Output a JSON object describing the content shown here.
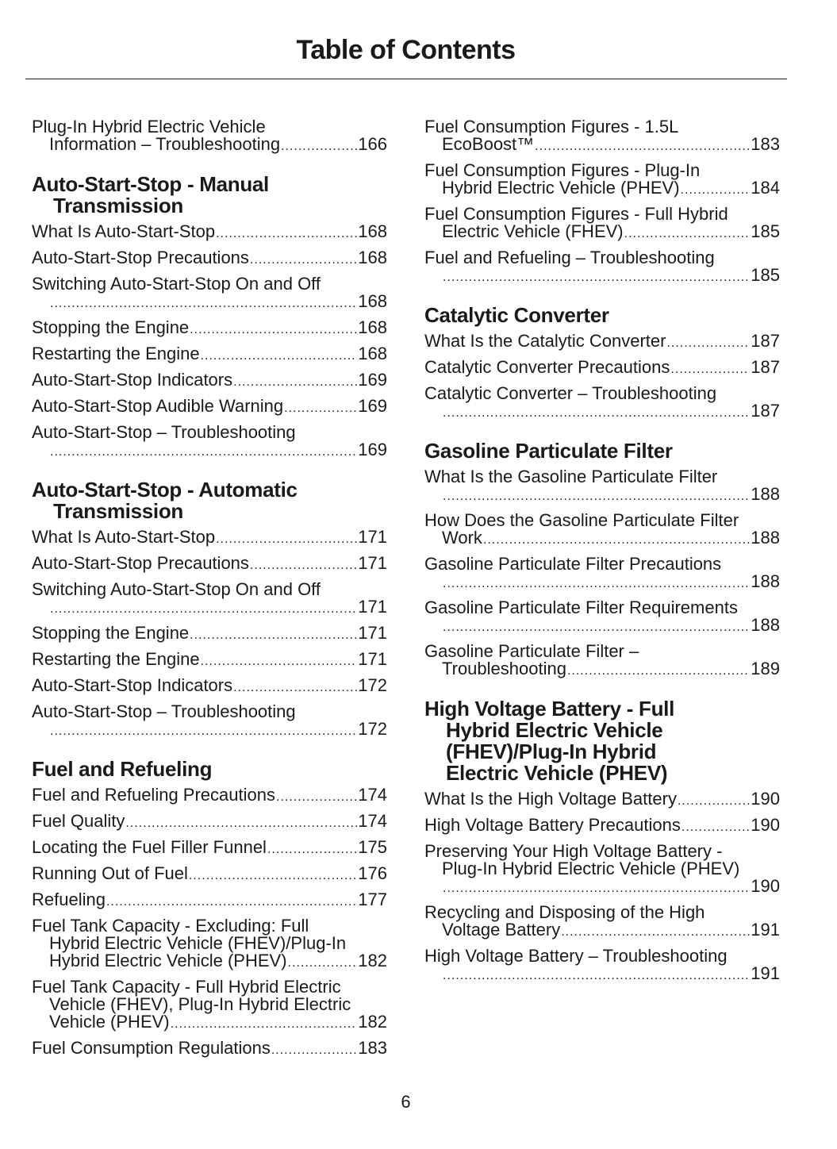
{
  "title": "Table of Contents",
  "page_number": "6",
  "columns": [
    [
      {
        "type": "entry",
        "lines": [
          "Plug-In Hybrid Electric Vehicle",
          "Information – Troubleshooting"
        ],
        "page": "166"
      },
      {
        "type": "heading",
        "lines": [
          "Auto-Start-Stop - Manual",
          "Transmission"
        ]
      },
      {
        "type": "entry",
        "lines": [
          "What Is Auto-Start-Stop"
        ],
        "page": "168"
      },
      {
        "type": "entry",
        "lines": [
          "Auto-Start-Stop Precautions"
        ],
        "page": "168"
      },
      {
        "type": "entry",
        "lines": [
          "Switching Auto-Start-Stop On and Off",
          ""
        ],
        "page": "168"
      },
      {
        "type": "entry",
        "lines": [
          "Stopping the Engine"
        ],
        "page": "168"
      },
      {
        "type": "entry",
        "lines": [
          "Restarting the Engine"
        ],
        "page": "168"
      },
      {
        "type": "entry",
        "lines": [
          "Auto-Start-Stop Indicators"
        ],
        "page": "169"
      },
      {
        "type": "entry",
        "lines": [
          "Auto-Start-Stop Audible Warning"
        ],
        "page": "169"
      },
      {
        "type": "entry",
        "lines": [
          "Auto-Start-Stop – Troubleshooting",
          ""
        ],
        "page": "169"
      },
      {
        "type": "heading",
        "lines": [
          "Auto-Start-Stop - Automatic",
          "Transmission"
        ]
      },
      {
        "type": "entry",
        "lines": [
          "What Is Auto-Start-Stop"
        ],
        "page": "171"
      },
      {
        "type": "entry",
        "lines": [
          "Auto-Start-Stop Precautions"
        ],
        "page": "171"
      },
      {
        "type": "entry",
        "lines": [
          "Switching Auto-Start-Stop On and Off",
          ""
        ],
        "page": "171"
      },
      {
        "type": "entry",
        "lines": [
          "Stopping the Engine"
        ],
        "page": "171"
      },
      {
        "type": "entry",
        "lines": [
          "Restarting the Engine"
        ],
        "page": "171"
      },
      {
        "type": "entry",
        "lines": [
          "Auto-Start-Stop Indicators"
        ],
        "page": "172"
      },
      {
        "type": "entry",
        "lines": [
          "Auto-Start-Stop – Troubleshooting",
          ""
        ],
        "page": "172"
      },
      {
        "type": "heading",
        "lines": [
          "Fuel and Refueling"
        ]
      },
      {
        "type": "entry",
        "lines": [
          "Fuel and Refueling Precautions"
        ],
        "page": "174"
      },
      {
        "type": "entry",
        "lines": [
          "Fuel Quality"
        ],
        "page": "174"
      },
      {
        "type": "entry",
        "lines": [
          "Locating the Fuel Filler Funnel"
        ],
        "page": "175"
      },
      {
        "type": "entry",
        "lines": [
          "Running Out of Fuel"
        ],
        "page": "176"
      },
      {
        "type": "entry",
        "lines": [
          "Refueling"
        ],
        "page": "177"
      },
      {
        "type": "entry",
        "lines": [
          "Fuel Tank Capacity - Excluding: Full",
          "Hybrid Electric Vehicle (FHEV)/Plug-In",
          "Hybrid Electric Vehicle (PHEV)"
        ],
        "page": "182"
      },
      {
        "type": "entry",
        "lines": [
          "Fuel Tank Capacity - Full Hybrid Electric",
          "Vehicle (FHEV), Plug-In Hybrid Electric",
          "Vehicle (PHEV)"
        ],
        "page": "182"
      },
      {
        "type": "entry",
        "lines": [
          "Fuel Consumption Regulations"
        ],
        "page": "183"
      }
    ],
    [
      {
        "type": "entry",
        "lines": [
          "Fuel Consumption Figures - 1.5L",
          "EcoBoost™"
        ],
        "page": "183"
      },
      {
        "type": "entry",
        "lines": [
          "Fuel Consumption Figures - Plug-In",
          "Hybrid Electric Vehicle (PHEV)"
        ],
        "page": "184"
      },
      {
        "type": "entry",
        "lines": [
          "Fuel Consumption Figures - Full Hybrid",
          "Electric Vehicle (FHEV)"
        ],
        "page": "185"
      },
      {
        "type": "entry",
        "lines": [
          "Fuel and Refueling – Troubleshooting",
          ""
        ],
        "page": "185"
      },
      {
        "type": "heading",
        "lines": [
          "Catalytic Converter"
        ]
      },
      {
        "type": "entry",
        "lines": [
          "What Is the Catalytic Converter"
        ],
        "page": "187"
      },
      {
        "type": "entry",
        "lines": [
          "Catalytic Converter Precautions"
        ],
        "page": "187"
      },
      {
        "type": "entry",
        "lines": [
          "Catalytic Converter – Troubleshooting",
          ""
        ],
        "page": "187"
      },
      {
        "type": "heading",
        "lines": [
          "Gasoline Particulate Filter"
        ]
      },
      {
        "type": "entry",
        "lines": [
          "What Is the Gasoline Particulate Filter",
          ""
        ],
        "page": "188"
      },
      {
        "type": "entry",
        "lines": [
          "How Does the Gasoline Particulate Filter",
          "Work"
        ],
        "page": "188"
      },
      {
        "type": "entry",
        "lines": [
          "Gasoline Particulate Filter Precautions",
          ""
        ],
        "page": "188"
      },
      {
        "type": "entry",
        "lines": [
          "Gasoline Particulate Filter Requirements",
          ""
        ],
        "page": "188"
      },
      {
        "type": "entry",
        "lines": [
          "Gasoline Particulate Filter –",
          "Troubleshooting"
        ],
        "page": "189"
      },
      {
        "type": "heading",
        "lines": [
          "High Voltage Battery - Full",
          "Hybrid Electric Vehicle",
          "(FHEV)/Plug-In Hybrid",
          "Electric Vehicle (PHEV)"
        ]
      },
      {
        "type": "entry",
        "lines": [
          "What Is the High Voltage Battery"
        ],
        "page": "190"
      },
      {
        "type": "entry",
        "lines": [
          "High Voltage Battery Precautions"
        ],
        "page": "190"
      },
      {
        "type": "entry",
        "lines": [
          "Preserving Your High Voltage Battery -",
          "Plug-In Hybrid Electric Vehicle (PHEV)",
          ""
        ],
        "page": "190"
      },
      {
        "type": "entry",
        "lines": [
          "Recycling and Disposing of the High",
          "Voltage Battery"
        ],
        "page": "191"
      },
      {
        "type": "entry",
        "lines": [
          "High Voltage Battery – Troubleshooting",
          ""
        ],
        "page": "191"
      }
    ]
  ]
}
